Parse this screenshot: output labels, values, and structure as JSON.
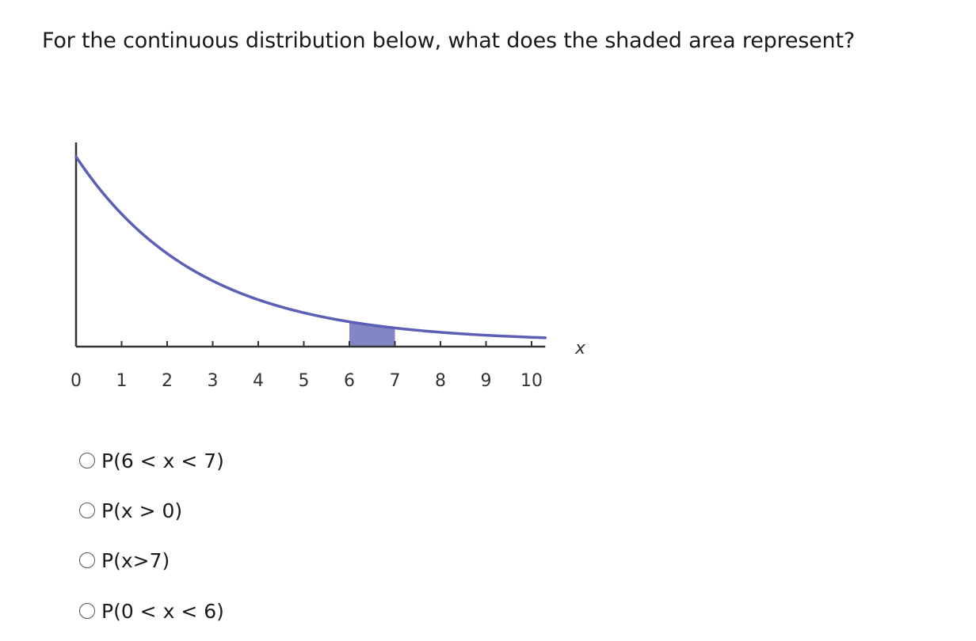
{
  "question": {
    "text": "For the continuous distribution below, what does the shaded area represent?"
  },
  "chart_data": {
    "type": "area",
    "curve": "decreasing density curve (exponential-like)",
    "x_ticks": [
      "0",
      "1",
      "2",
      "3",
      "4",
      "5",
      "6",
      "7",
      "8",
      "9",
      "10"
    ],
    "xlabel": "x",
    "xlim": [
      0,
      10.3
    ],
    "shaded_interval": [
      6,
      7
    ],
    "colors": {
      "curve": "#5b5fb5",
      "shade": "#8385c4",
      "axis": "#333333"
    }
  },
  "options": [
    {
      "label": "P(6 < x < 7)"
    },
    {
      "label": "P(x > 0)"
    },
    {
      "label": "P(x>7)"
    },
    {
      "label": "P(0 < x < 6)"
    }
  ]
}
